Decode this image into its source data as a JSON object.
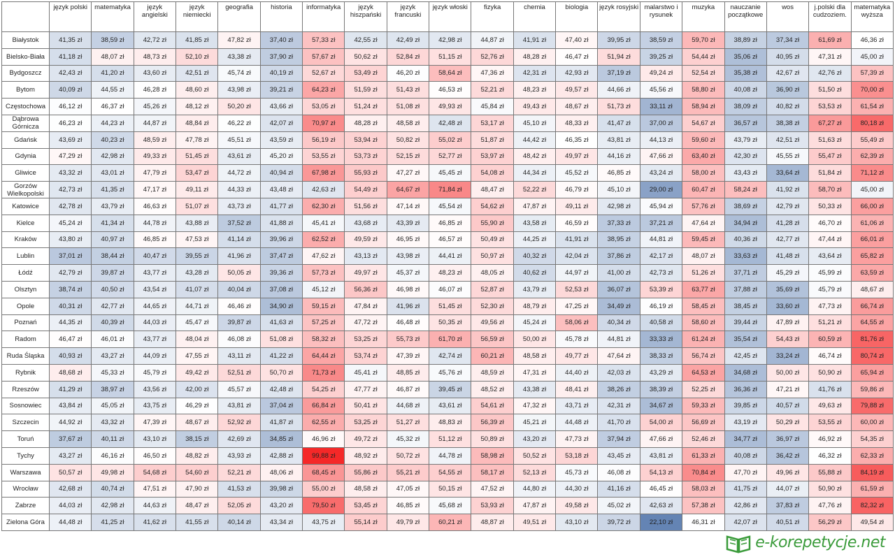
{
  "table": {
    "columns": [
      "język polski",
      "matematyka",
      "język angielski",
      "język niemiecki",
      "geografia",
      "historia",
      "informatyka",
      "język hiszpański",
      "język francuski",
      "język włoski",
      "fizyka",
      "chemia",
      "biologia",
      "język rosyjski",
      "malarstwo i rysunek",
      "muzyka",
      "nauczanie początkowe",
      "wos",
      "j.polski dla cudzoziem.",
      "matematyka wyższa"
    ],
    "rows": [
      {
        "city": "Białystok",
        "cells": [
          "41,35 zł",
          "38,59 zł",
          "42,72 zł",
          "41,85 zł",
          "47,82 zł",
          "37,40 zł",
          "57,33 zł",
          "42,55 zł",
          "42,49 zł",
          "42,98 zł",
          "44,87 zł",
          "41,91 zł",
          "47,40 zł",
          "39,95 zł",
          "38,59 zł",
          "59,70 zł",
          "38,89 zł",
          "37,34 zł",
          "61,69 zł",
          "46,36 zł"
        ]
      },
      {
        "city": "Bielsko-Biała",
        "cells": [
          "41,18 zł",
          "48,07 zł",
          "48,73 zł",
          "52,10 zł",
          "43,38 zł",
          "37,90 zł",
          "57,67 zł",
          "50,62 zł",
          "52,84 zł",
          "51,15 zł",
          "52,76 zł",
          "48,28 zł",
          "46,47 zł",
          "51,94 zł",
          "39,25 zł",
          "54,44 zł",
          "35,06 zł",
          "40,95 zł",
          "47,31 zł",
          "45,00 zł"
        ]
      },
      {
        "city": "Bydgoszcz",
        "cells": [
          "42,43 zł",
          "41,20 zł",
          "43,60 zł",
          "42,51 zł",
          "45,74 zł",
          "40,19 zł",
          "52,67 zł",
          "53,49 zł",
          "46,20 zł",
          "58,64 zł",
          "47,36 zł",
          "42,31 zł",
          "42,93 zł",
          "37,19 zł",
          "49,24 zł",
          "52,54 zł",
          "35,38 zł",
          "42,67 zł",
          "42,76 zł",
          "57,39 zł"
        ]
      },
      {
        "city": "Bytom",
        "cells": [
          "40,09 zł",
          "44,55 zł",
          "46,28 zł",
          "48,60 zł",
          "43,98 zł",
          "39,21 zł",
          "64,23 zł",
          "51,59 zł",
          "51,43 zł",
          "46,53 zł",
          "52,21 zł",
          "48,23 zł",
          "49,57 zł",
          "44,66 zł",
          "45,56 zł",
          "58,80 zł",
          "40,08 zł",
          "36,90 zł",
          "51,50 zł",
          "70,00 zł"
        ]
      },
      {
        "city": "Częstochowa",
        "cells": [
          "46,12 zł",
          "46,37 zł",
          "45,26 zł",
          "48,12 zł",
          "50,20 zł",
          "43,66 zł",
          "53,05 zł",
          "51,24 zł",
          "51,08 zł",
          "49,93 zł",
          "45,84 zł",
          "49,43 zł",
          "48,67 zł",
          "51,73 zł",
          "33,11 zł",
          "58,94 zł",
          "38,09 zł",
          "40,82 zł",
          "53,53 zł",
          "61,54 zł"
        ]
      },
      {
        "city": "Dąbrowa Górnicza",
        "cells": [
          "46,23 zł",
          "44,23 zł",
          "44,87 zł",
          "48,84 zł",
          "46,22 zł",
          "42,07 zł",
          "70,97 zł",
          "48,28 zł",
          "48,58 zł",
          "42,48 zł",
          "53,17 zł",
          "45,10 zł",
          "48,33 zł",
          "41,47 zł",
          "37,00 zł",
          "54,67 zł",
          "36,57 zł",
          "38,38 zł",
          "67,27 zł",
          "80,18 zł"
        ]
      },
      {
        "city": "Gdańsk",
        "cells": [
          "43,69 zł",
          "40,23 zł",
          "48,59 zł",
          "47,78 zł",
          "45,51 zł",
          "43,59 zł",
          "56,19 zł",
          "53,94 zł",
          "50,82 zł",
          "55,02 zł",
          "51,87 zł",
          "44,42 zł",
          "46,35 zł",
          "43,81 zł",
          "44,13 zł",
          "59,60 zł",
          "43,79 zł",
          "42,51 zł",
          "51,63 zł",
          "55,49 zł"
        ]
      },
      {
        "city": "Gdynia",
        "cells": [
          "47,29 zł",
          "42,98 zł",
          "49,33 zł",
          "51,45 zł",
          "43,61 zł",
          "45,20 zł",
          "53,55 zł",
          "53,73 zł",
          "52,15 zł",
          "52,77 zł",
          "53,97 zł",
          "48,42 zł",
          "49,97 zł",
          "44,16 zł",
          "47,66 zł",
          "63,40 zł",
          "42,30 zł",
          "45,55 zł",
          "55,47 zł",
          "62,39 zł"
        ]
      },
      {
        "city": "Gliwice",
        "cells": [
          "43,32 zł",
          "43,01 zł",
          "47,79 zł",
          "53,47 zł",
          "44,72 zł",
          "40,94 zł",
          "67,98 zł",
          "55,93 zł",
          "47,27 zł",
          "45,45 zł",
          "54,08 zł",
          "44,34 zł",
          "45,52 zł",
          "46,85 zł",
          "43,24 zł",
          "58,00 zł",
          "43,43 zł",
          "33,64 zł",
          "51,84 zł",
          "71,12 zł"
        ]
      },
      {
        "city": "Gorzów Wielkopolski",
        "cells": [
          "42,73 zł",
          "41,35 zł",
          "47,17 zł",
          "49,11 zł",
          "44,33 zł",
          "43,48 zł",
          "42,63 zł",
          "54,49 zł",
          "64,67 zł",
          "71,84 zł",
          "48,47 zł",
          "52,22 zł",
          "46,79 zł",
          "45,10 zł",
          "29,00 zł",
          "60,47 zł",
          "58,24 zł",
          "41,92 zł",
          "58,70 zł",
          "45,00 zł"
        ]
      },
      {
        "city": "Katowice",
        "cells": [
          "42,78 zł",
          "43,79 zł",
          "46,63 zł",
          "51,07 zł",
          "43,73 zł",
          "41,77 zł",
          "62,30 zł",
          "51,56 zł",
          "47,14 zł",
          "45,54 zł",
          "54,62 zł",
          "47,87 zł",
          "49,11 zł",
          "42,98 zł",
          "45,94 zł",
          "57,76 zł",
          "38,69 zł",
          "42,79 zł",
          "50,33 zł",
          "66,00 zł"
        ]
      },
      {
        "city": "Kielce",
        "cells": [
          "45,24 zł",
          "41,34 zł",
          "44,78 zł",
          "43,88 zł",
          "37,52 zł",
          "41,88 zł",
          "45,41 zł",
          "43,68 zł",
          "43,39 zł",
          "46,85 zł",
          "55,90 zł",
          "43,58 zł",
          "46,59 zł",
          "37,33 zł",
          "37,21 zł",
          "47,64 zł",
          "34,94 zł",
          "41,28 zł",
          "46,70 zł",
          "61,06 zł"
        ]
      },
      {
        "city": "Kraków",
        "cells": [
          "43,80 zł",
          "40,97 zł",
          "46,85 zł",
          "47,53 zł",
          "41,14 zł",
          "39,96 zł",
          "62,52 zł",
          "49,59 zł",
          "46,95 zł",
          "46,57 zł",
          "50,49 zł",
          "44,25 zł",
          "41,91 zł",
          "38,95 zł",
          "44,81 zł",
          "59,45 zł",
          "40,36 zł",
          "42,77 zł",
          "47,44 zł",
          "66,01 zł"
        ]
      },
      {
        "city": "Lublin",
        "cells": [
          "37,01 zł",
          "38,44 zł",
          "40,47 zł",
          "39,55 zł",
          "41,96 zł",
          "37,47 zł",
          "47,62 zł",
          "43,13 zł",
          "43,98 zł",
          "44,41 zł",
          "50,97 zł",
          "40,32 zł",
          "42,04 zł",
          "37,86 zł",
          "42,17 zł",
          "48,07 zł",
          "33,63 zł",
          "41,48 zł",
          "43,64 zł",
          "65,82 zł"
        ]
      },
      {
        "city": "Łódź",
        "cells": [
          "42,79 zł",
          "39,87 zł",
          "43,77 zł",
          "43,28 zł",
          "50,05 zł",
          "39,36 zł",
          "57,73 zł",
          "49,97 zł",
          "45,37 zł",
          "48,23 zł",
          "48,05 zł",
          "40,62 zł",
          "44,97 zł",
          "41,00 zł",
          "42,73 zł",
          "51,26 zł",
          "37,71 zł",
          "45,29 zł",
          "45,99 zł",
          "63,59 zł"
        ]
      },
      {
        "city": "Olsztyn",
        "cells": [
          "38,74 zł",
          "40,50 zł",
          "43,54 zł",
          "41,07 zł",
          "40,04 zł",
          "37,08 zł",
          "45,12 zł",
          "56,36 zł",
          "46,98 zł",
          "46,07 zł",
          "52,87 zł",
          "43,79 zł",
          "52,53 zł",
          "36,07 zł",
          "53,39 zł",
          "63,77 zł",
          "37,88 zł",
          "35,69 zł",
          "45,79 zł",
          "48,67 zł"
        ]
      },
      {
        "city": "Opole",
        "cells": [
          "40,31 zł",
          "42,77 zł",
          "44,65 zł",
          "44,71 zł",
          "46,46 zł",
          "34,90 zł",
          "59,15 zł",
          "47,84 zł",
          "41,96 zł",
          "51,45 zł",
          "52,30 zł",
          "48,79 zł",
          "47,25 zł",
          "34,49 zł",
          "46,19 zł",
          "58,45 zł",
          "38,45 zł",
          "33,60 zł",
          "47,73 zł",
          "66,74 zł"
        ]
      },
      {
        "city": "Poznań",
        "cells": [
          "44,35 zł",
          "40,39 zł",
          "44,03 zł",
          "45,47 zł",
          "39,87 zł",
          "41,63 zł",
          "57,25 zł",
          "47,72 zł",
          "46,48 zł",
          "50,35 zł",
          "49,56 zł",
          "45,24 zł",
          "58,06 zł",
          "40,34 zł",
          "40,58 zł",
          "58,60 zł",
          "39,44 zł",
          "47,89 zł",
          "51,21 zł",
          "64,55 zł"
        ]
      },
      {
        "city": "Radom",
        "cells": [
          "46,47 zł",
          "46,01 zł",
          "43,77 zł",
          "48,04 zł",
          "46,08 zł",
          "51,08 zł",
          "58,32 zł",
          "53,25 zł",
          "55,73 zł",
          "61,70 zł",
          "56,59 zł",
          "50,00 zł",
          "45,78 zł",
          "44,81 zł",
          "33,33 zł",
          "61,24 zł",
          "35,54 zł",
          "54,43 zł",
          "60,59 zł",
          "81,76 zł"
        ]
      },
      {
        "city": "Ruda Śląska",
        "cells": [
          "40,93 zł",
          "43,27 zł",
          "44,09 zł",
          "47,55 zł",
          "43,11 zł",
          "41,22 zł",
          "64,44 zł",
          "53,74 zł",
          "47,39 zł",
          "42,74 zł",
          "60,21 zł",
          "48,58 zł",
          "49,77 zł",
          "47,64 zł",
          "38,33 zł",
          "56,74 zł",
          "42,45 zł",
          "33,24 zł",
          "46,74 zł",
          "80,74 zł"
        ]
      },
      {
        "city": "Rybnik",
        "cells": [
          "48,68 zł",
          "45,33 zł",
          "45,79 zł",
          "49,42 zł",
          "52,51 zł",
          "50,70 zł",
          "71,73 zł",
          "45,41 zł",
          "48,85 zł",
          "45,76 zł",
          "48,59 zł",
          "47,31 zł",
          "44,40 zł",
          "42,03 zł",
          "43,29 zł",
          "64,53 zł",
          "34,68 zł",
          "50,00 zł",
          "50,90 zł",
          "65,94 zł"
        ]
      },
      {
        "city": "Rzeszów",
        "cells": [
          "41,29 zł",
          "38,97 zł",
          "43,56 zł",
          "42,00 zł",
          "45,57 zł",
          "42,48 zł",
          "54,25 zł",
          "47,77 zł",
          "46,87 zł",
          "39,45 zł",
          "48,52 zł",
          "43,38 zł",
          "48,41 zł",
          "38,26 zł",
          "38,39 zł",
          "52,25 zł",
          "36,36 zł",
          "47,21 zł",
          "41,76 zł",
          "59,86 zł"
        ]
      },
      {
        "city": "Sosnowiec",
        "cells": [
          "43,84 zł",
          "45,05 zł",
          "43,75 zł",
          "46,29 zł",
          "43,81 zł",
          "37,04 zł",
          "66,84 zł",
          "50,41 zł",
          "44,68 zł",
          "43,61 zł",
          "54,61 zł",
          "47,32 zł",
          "43,71 zł",
          "42,31 zł",
          "34,67 zł",
          "59,33 zł",
          "39,85 zł",
          "40,57 zł",
          "49,63 zł",
          "79,88 zł"
        ]
      },
      {
        "city": "Szczecin",
        "cells": [
          "44,92 zł",
          "43,32 zł",
          "47,39 zł",
          "48,67 zł",
          "52,92 zł",
          "41,87 zł",
          "62,55 zł",
          "53,25 zł",
          "51,27 zł",
          "48,83 zł",
          "56,39 zł",
          "45,21 zł",
          "44,48 zł",
          "41,70 zł",
          "54,00 zł",
          "56,69 zł",
          "43,19 zł",
          "50,29 zł",
          "53,55 zł",
          "60,00 zł"
        ]
      },
      {
        "city": "Toruń",
        "cells": [
          "37,67 zł",
          "40,11 zł",
          "43,10 zł",
          "38,15 zł",
          "42,69 zł",
          "34,85 zł",
          "46,96 zł",
          "49,72 zł",
          "45,32 zł",
          "51,12 zł",
          "50,89 zł",
          "43,20 zł",
          "47,73 zł",
          "37,94 zł",
          "47,66 zł",
          "52,46 zł",
          "34,77 zł",
          "36,97 zł",
          "46,92 zł",
          "54,35 zł"
        ]
      },
      {
        "city": "Tychy",
        "cells": [
          "43,27 zł",
          "46,16 zł",
          "46,50 zł",
          "48,82 zł",
          "43,93 zł",
          "42,88 zł",
          "99,88 zł",
          "48,92 zł",
          "50,72 zł",
          "44,78 zł",
          "58,98 zł",
          "50,52 zł",
          "53,18 zł",
          "43,45 zł",
          "43,81 zł",
          "61,33 zł",
          "40,08 zł",
          "36,42 zł",
          "46,32 zł",
          "62,33 zł"
        ]
      },
      {
        "city": "Warszawa",
        "cells": [
          "50,57 zł",
          "49,98 zł",
          "54,68 zł",
          "54,60 zł",
          "52,21 zł",
          "48,06 zł",
          "68,45 zł",
          "55,86 zł",
          "55,21 zł",
          "54,55 zł",
          "58,17 zł",
          "52,13 zł",
          "45,73 zł",
          "46,08 zł",
          "54,13 zł",
          "70,84 zł",
          "47,70 zł",
          "49,96 zł",
          "55,88 zł",
          "84,19 zł"
        ]
      },
      {
        "city": "Wrocław",
        "cells": [
          "42,68 zł",
          "40,74 zł",
          "47,51 zł",
          "47,90 zł",
          "41,53 zł",
          "39,98 zł",
          "55,00 zł",
          "48,58 zł",
          "47,05 zł",
          "50,15 zł",
          "47,52 zł",
          "44,80 zł",
          "44,30 zł",
          "41,16 zł",
          "46,45 zł",
          "58,03 zł",
          "41,75 zł",
          "44,07 zł",
          "50,90 zł",
          "61,59 zł"
        ]
      },
      {
        "city": "Zabrze",
        "cells": [
          "44,03 zł",
          "42,98 zł",
          "44,63 zł",
          "48,47 zł",
          "52,05 zł",
          "43,20 zł",
          "79,50 zł",
          "53,45 zł",
          "46,85 zł",
          "45,68 zł",
          "53,93 zł",
          "47,87 zł",
          "49,58 zł",
          "45,02 zł",
          "42,63 zł",
          "57,38 zł",
          "42,86 zł",
          "37,83 zł",
          "47,76 zł",
          "82,32 zł"
        ]
      },
      {
        "city": "Zielona Góra",
        "cells": [
          "44,48 zł",
          "41,25 zł",
          "41,62 zł",
          "41,55 zł",
          "40,14 zł",
          "43,34 zł",
          "43,75 zł",
          "55,14 zł",
          "49,79 zł",
          "60,21 zł",
          "48,87 zł",
          "49,51 zł",
          "43,10 zł",
          "39,72 zł",
          "22,10 zł",
          "46,31 zł",
          "42,07 zł",
          "40,51 zł",
          "56,29 zł",
          "49,54 zł"
        ]
      }
    ]
  },
  "logo": "e-korepetycje.net"
}
